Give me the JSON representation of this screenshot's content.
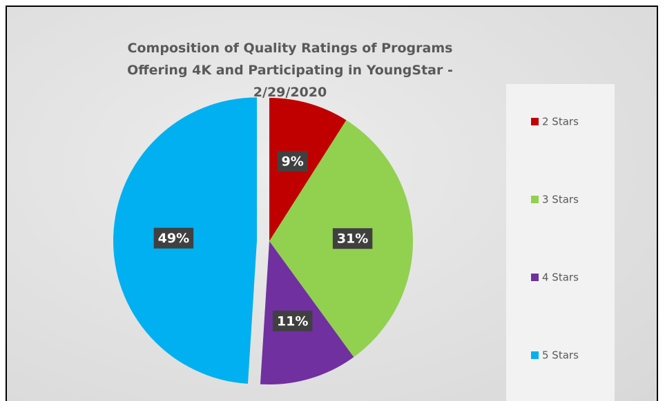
{
  "chart_data": {
    "type": "pie",
    "title": "Composition of Quality Ratings of Programs Offering 4K and Participating in YoungStar - 2/29/2020",
    "categories": [
      "2 Stars",
      "3 Stars",
      "4 Stars",
      "5 Stars"
    ],
    "values": [
      9,
      31,
      11,
      49
    ],
    "value_labels": [
      "9%",
      "31%",
      "11%",
      "49%"
    ],
    "colors": [
      "#c00000",
      "#92d050",
      "#7030a0",
      "#00b0f0"
    ],
    "legend": "right"
  }
}
